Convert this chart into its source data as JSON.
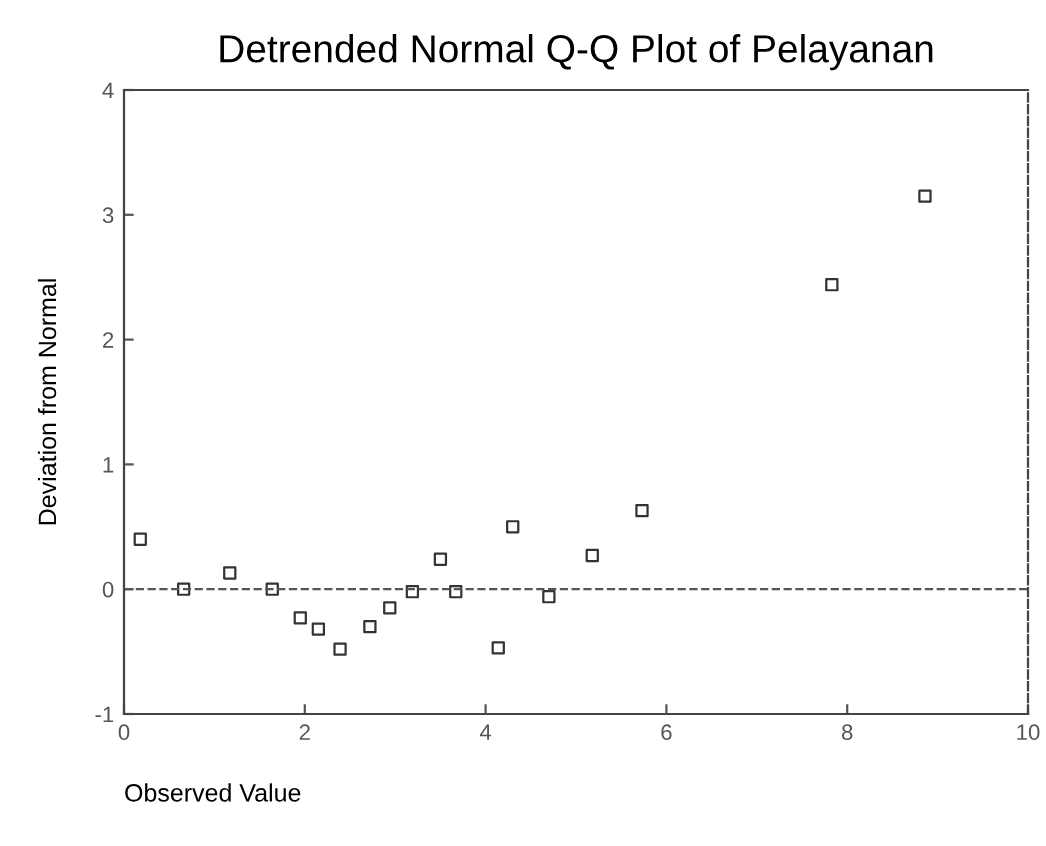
{
  "chart_data": {
    "type": "scatter",
    "title": "Detrended Normal Q-Q Plot of Pelayanan",
    "xlabel": "Observed Value",
    "ylabel": "Deviation from Normal",
    "x": [
      0.18,
      0.66,
      1.17,
      1.64,
      1.95,
      2.15,
      2.39,
      2.72,
      2.94,
      3.19,
      3.5,
      3.67,
      4.14,
      4.3,
      4.7,
      5.18,
      5.73,
      7.83,
      8.86
    ],
    "values": [
      0.4,
      0.0,
      0.13,
      0.0,
      -0.23,
      -0.32,
      -0.48,
      -0.3,
      -0.15,
      -0.02,
      0.24,
      -0.02,
      -0.47,
      0.5,
      -0.06,
      0.27,
      0.63,
      2.44,
      3.15
    ],
    "color": "#333333",
    "marker": "square",
    "xlim": [
      0,
      10
    ],
    "ylim": [
      -1,
      4
    ],
    "xticks": [
      0,
      2,
      4,
      6,
      8,
      10
    ],
    "yticks": [
      -1,
      0,
      1,
      2,
      3,
      4
    ],
    "ref_lines": [
      {
        "axis": "y",
        "value": 0,
        "color": "#555555",
        "line_style": "dashed"
      }
    ],
    "grid": false
  }
}
